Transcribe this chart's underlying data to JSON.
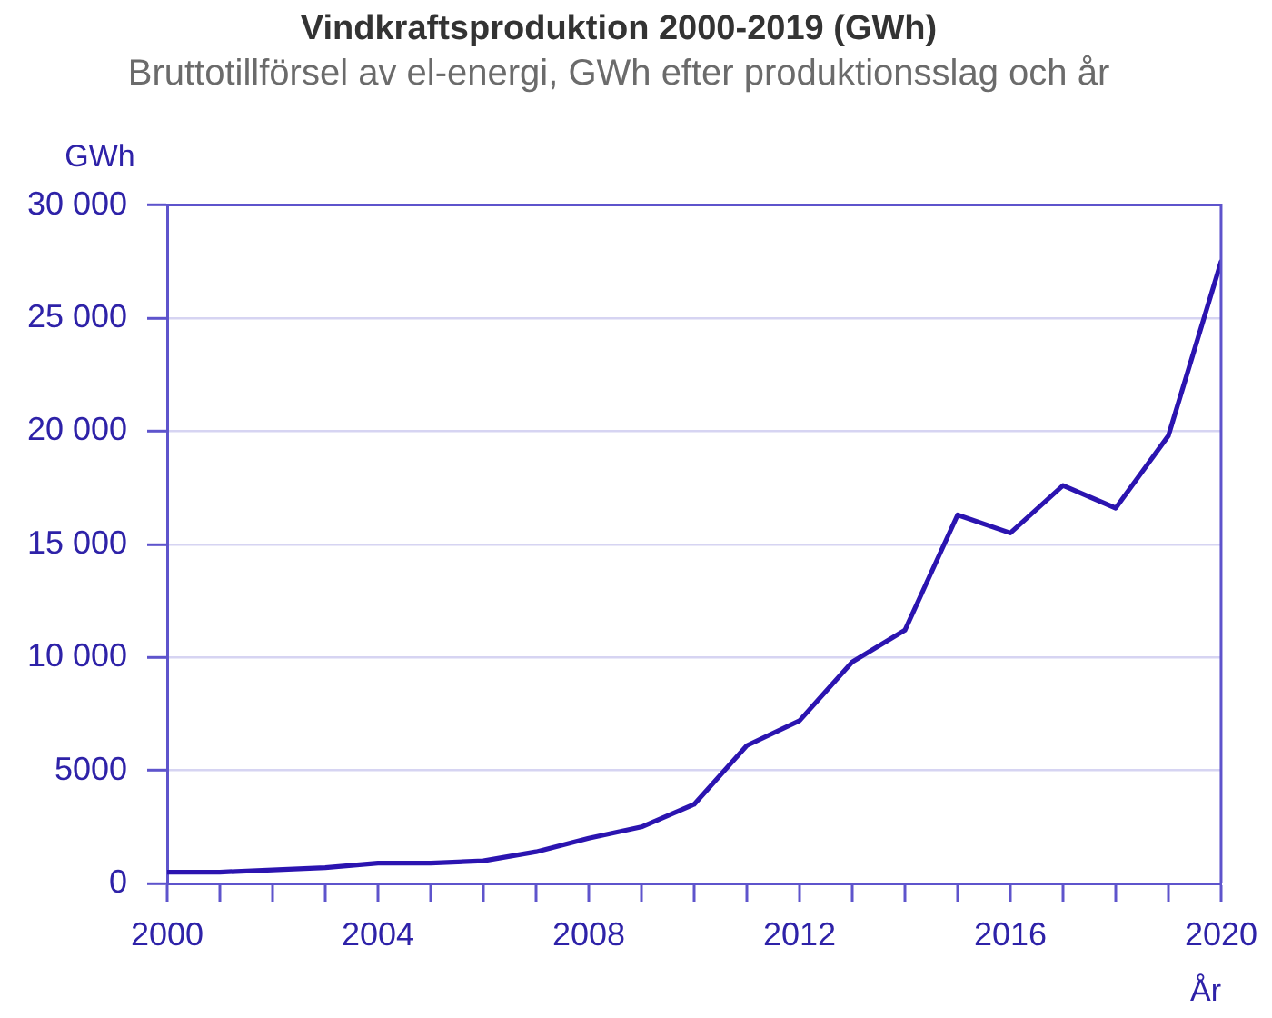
{
  "chart_data": {
    "type": "line",
    "title": "Vindkraftsproduktion 2000-2019 (GWh)",
    "subtitle": "Bruttotillförsel av el-energi, GWh efter produktionsslag och år",
    "xlabel": "År",
    "ylabel": "GWh",
    "x": [
      2000,
      2001,
      2002,
      2003,
      2004,
      2005,
      2006,
      2007,
      2008,
      2009,
      2010,
      2011,
      2012,
      2013,
      2014,
      2015,
      2016,
      2017,
      2018,
      2019,
      2020
    ],
    "values": [
      500,
      500,
      600,
      700,
      900,
      900,
      1000,
      1400,
      2000,
      2500,
      3500,
      6100,
      7200,
      9800,
      11200,
      16300,
      15500,
      17600,
      16600,
      19800,
      27500
    ],
    "color": "#2b14b0",
    "xlim": [
      2000,
      2020
    ],
    "xticks": [
      2000,
      {
        "value": 2001,
        "label": null
      },
      {
        "value": 2002,
        "label": null
      },
      {
        "value": 2003,
        "label": null
      },
      2004,
      {
        "value": 2005,
        "label": null
      },
      {
        "value": 2006,
        "label": null
      },
      {
        "value": 2007,
        "label": null
      },
      2008,
      {
        "value": 2009,
        "label": null
      },
      {
        "value": 2010,
        "label": null
      },
      {
        "value": 2011,
        "label": null
      },
      2012,
      {
        "value": 2013,
        "label": null
      },
      {
        "value": 2014,
        "label": null
      },
      {
        "value": 2015,
        "label": null
      },
      2016,
      {
        "value": 2017,
        "label": null
      },
      {
        "value": 2018,
        "label": null
      },
      {
        "value": 2019,
        "label": null
      },
      2020
    ],
    "ylim": [
      0,
      30000
    ],
    "yticks": [
      0,
      5000,
      {
        "value": 10000,
        "label": "10 000"
      },
      {
        "value": 15000,
        "label": "15 000"
      },
      {
        "value": 20000,
        "label": "20 000"
      },
      {
        "value": 25000,
        "label": "25 000"
      },
      {
        "value": 30000,
        "label": "30 000"
      }
    ],
    "grid": "y",
    "marker": "none",
    "line_style": "solid"
  }
}
